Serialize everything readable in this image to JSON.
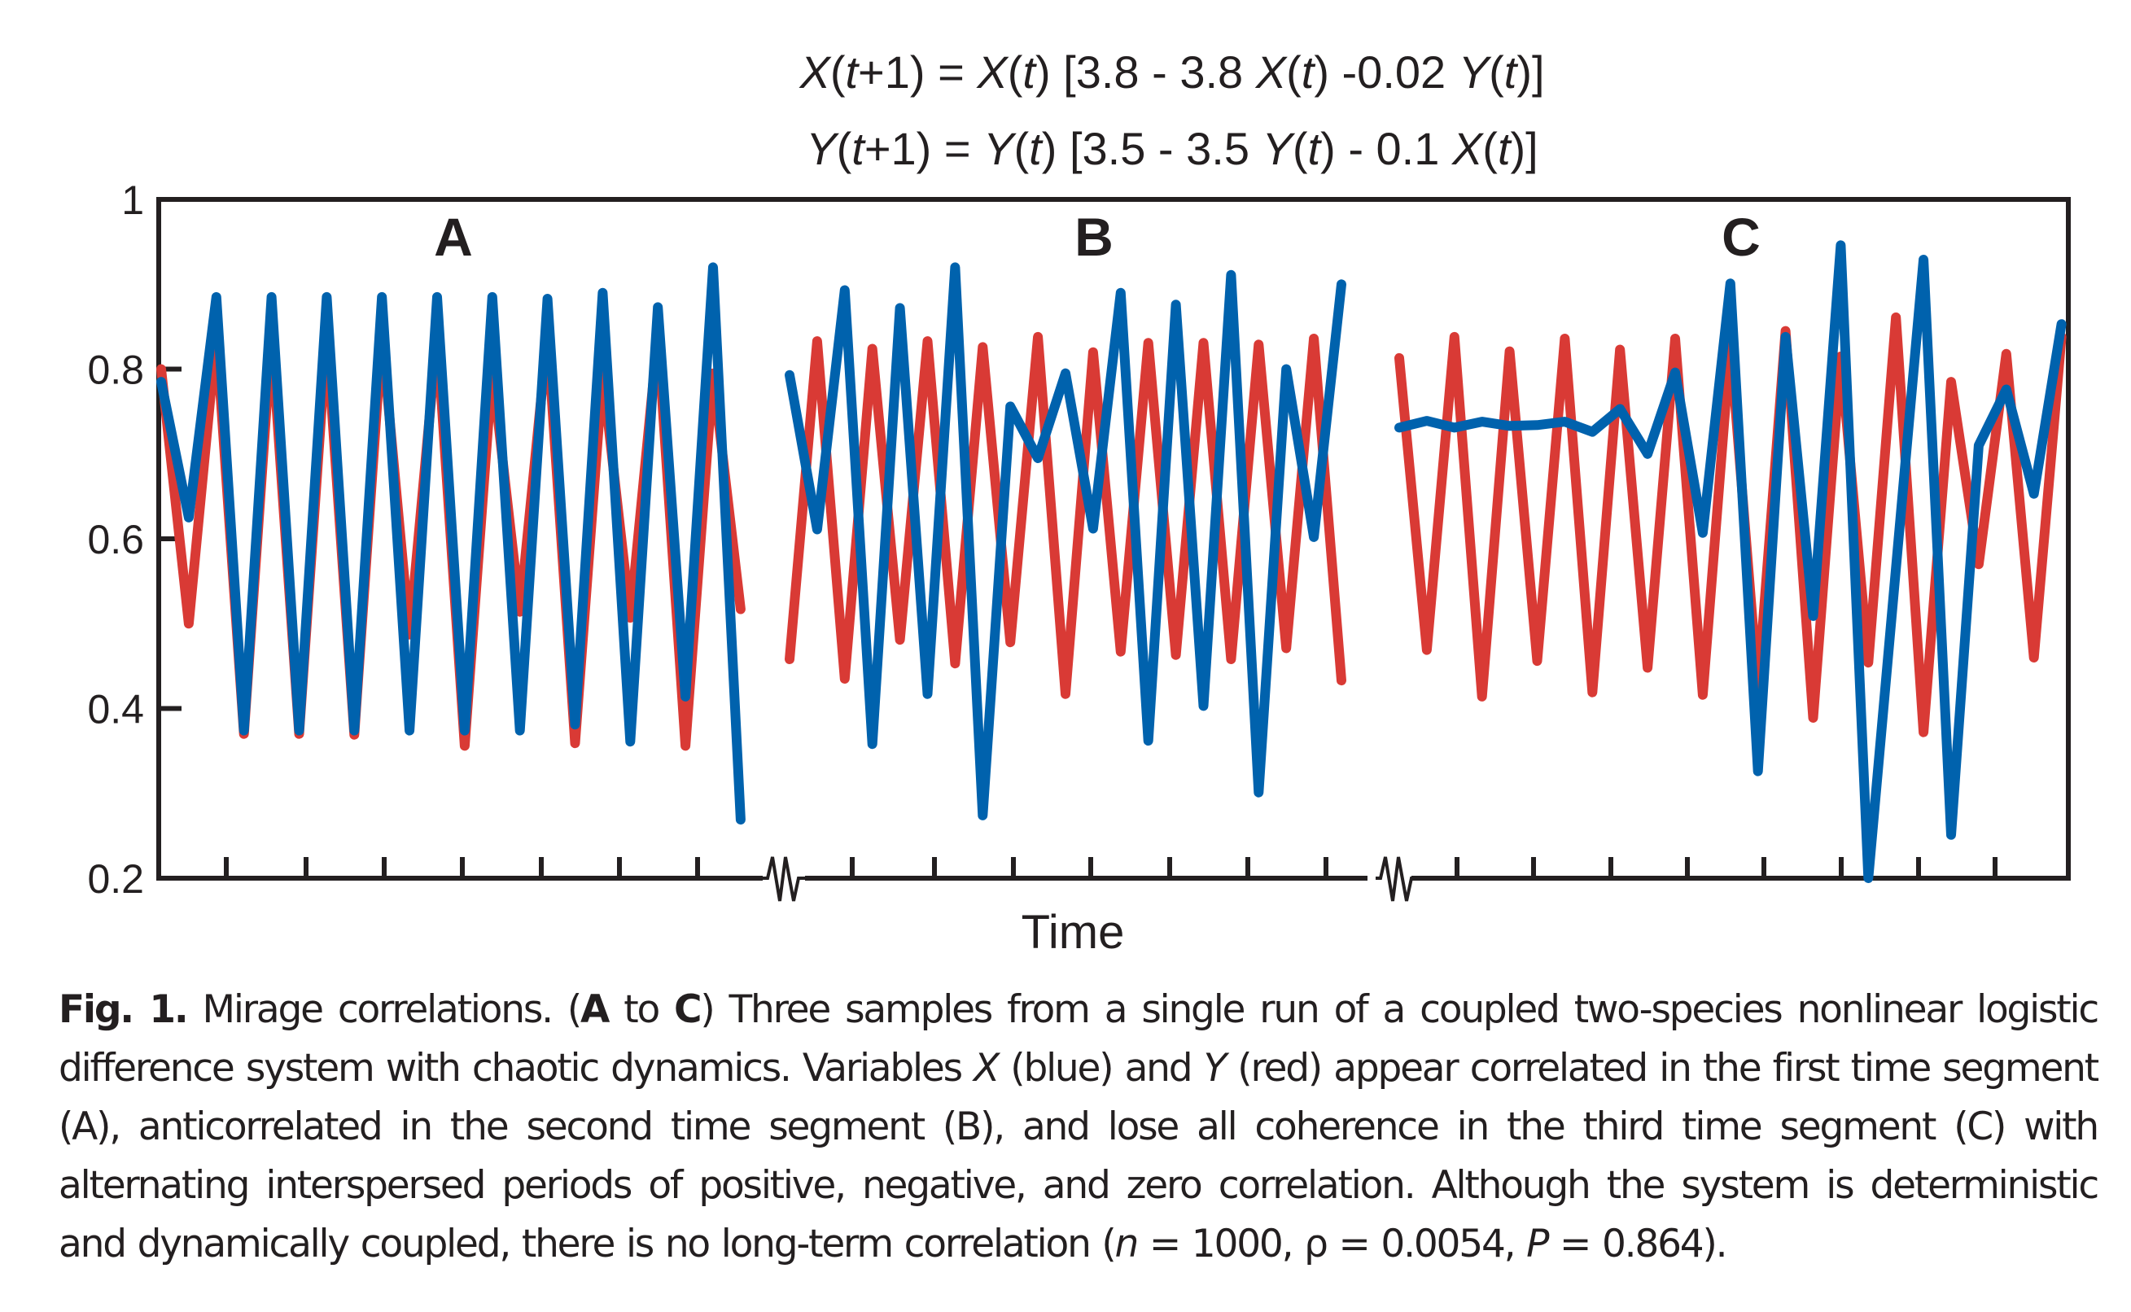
{
  "equations": {
    "x_eq": [
      {
        "t": "X",
        "i": true
      },
      {
        "t": "(",
        "i": false
      },
      {
        "t": "t",
        "i": true
      },
      {
        "t": "+1) = ",
        "i": false
      },
      {
        "t": "X",
        "i": true
      },
      {
        "t": "(",
        "i": false
      },
      {
        "t": "t",
        "i": true
      },
      {
        "t": ") [3.8 - 3.8 ",
        "i": false
      },
      {
        "t": "X",
        "i": true
      },
      {
        "t": "(",
        "i": false
      },
      {
        "t": "t",
        "i": true
      },
      {
        "t": ") -0.02 ",
        "i": false
      },
      {
        "t": "Y",
        "i": true
      },
      {
        "t": "(",
        "i": false
      },
      {
        "t": "t",
        "i": true
      },
      {
        "t": ")]",
        "i": false
      }
    ],
    "y_eq": [
      {
        "t": "Y",
        "i": true
      },
      {
        "t": "(",
        "i": false
      },
      {
        "t": "t",
        "i": true
      },
      {
        "t": "+1) = ",
        "i": false
      },
      {
        "t": "Y",
        "i": true
      },
      {
        "t": "(",
        "i": false
      },
      {
        "t": "t",
        "i": true
      },
      {
        "t": ") [3.5 - 3.5 ",
        "i": false
      },
      {
        "t": "Y",
        "i": true
      },
      {
        "t": "(",
        "i": false
      },
      {
        "t": "t",
        "i": true
      },
      {
        "t": ") - 0.1 ",
        "i": false
      },
      {
        "t": "X",
        "i": true
      },
      {
        "t": "(",
        "i": false
      },
      {
        "t": "t",
        "i": true
      },
      {
        "t": ")]",
        "i": false
      }
    ]
  },
  "colors": {
    "X_blue": "#0062ad",
    "Y_red": "#d93a35",
    "axis": "#231f20"
  },
  "chart_data": {
    "type": "line",
    "title": "X(t+1) = X(t) [3.8 - 3.8 X(t) -0.02 Y(t)]; Y(t+1) = Y(t) [3.5 - 3.5 Y(t) - 0.1 X(t)]",
    "xlabel": "Time",
    "ylabel": "",
    "ylim": [
      0.2,
      1.0
    ],
    "yticks": [
      0.2,
      0.4,
      0.6,
      0.8,
      1.0
    ],
    "ytick_labels": [
      "0.2",
      "0.4",
      "0.6",
      "0.8",
      "1"
    ],
    "grid": false,
    "legend": "none",
    "axis_breaks": 2,
    "xticks_per_segment": [
      8,
      7,
      8
    ],
    "segments": [
      {
        "label": "A",
        "series": [
          {
            "name": "X (blue)",
            "color": "#0062ad",
            "values": [
              0.785,
              0.625,
              0.885,
              0.374,
              0.885,
              0.374,
              0.885,
              0.374,
              0.885,
              0.374,
              0.885,
              0.374,
              0.885,
              0.374,
              0.883,
              0.381,
              0.89,
              0.361,
              0.873,
              0.414,
              0.92,
              0.269
            ]
          },
          {
            "name": "Y (red)",
            "color": "#d93a35",
            "values": [
              0.8,
              0.5,
              0.84,
              0.37,
              0.84,
              0.37,
              0.84,
              0.369,
              0.84,
              0.487,
              0.84,
              0.356,
              0.8,
              0.514,
              0.84,
              0.359,
              0.795,
              0.507,
              0.84,
              0.356,
              0.795,
              0.517
            ]
          }
        ]
      },
      {
        "label": "B",
        "series": [
          {
            "name": "X (blue)",
            "color": "#0062ad",
            "values": [
              0.793,
              0.611,
              0.893,
              0.358,
              0.872,
              0.417,
              0.92,
              0.274,
              0.756,
              0.695,
              0.795,
              0.612,
              0.89,
              0.362,
              0.876,
              0.403,
              0.911,
              0.301,
              0.8,
              0.602,
              0.9
            ]
          },
          {
            "name": "Y (red)",
            "color": "#d93a35",
            "values": [
              0.458,
              0.833,
              0.435,
              0.824,
              0.481,
              0.833,
              0.453,
              0.826,
              0.478,
              0.838,
              0.417,
              0.82,
              0.467,
              0.831,
              0.463,
              0.831,
              0.458,
              0.829,
              0.471,
              0.836,
              0.433
            ]
          }
        ]
      },
      {
        "label": "C",
        "series": [
          {
            "name": "X (blue)",
            "color": "#0062ad",
            "values": [
              0.731,
              0.739,
              0.731,
              0.738,
              0.733,
              0.734,
              0.738,
              0.726,
              0.753,
              0.7,
              0.796,
              0.607,
              0.901,
              0.326,
              0.838,
              0.509,
              0.946,
              0.2,
              0.565,
              0.929,
              0.251,
              0.71,
              0.776,
              0.653,
              0.853
            ]
          },
          {
            "name": "Y (red)",
            "color": "#d93a35",
            "values": [
              0.813,
              0.469,
              0.838,
              0.414,
              0.821,
              0.456,
              0.836,
              0.419,
              0.823,
              0.448,
              0.836,
              0.416,
              0.83,
              0.424,
              0.845,
              0.389,
              0.815,
              0.454,
              0.861,
              0.372,
              0.785,
              0.57,
              0.818,
              0.46,
              0.838
            ]
          }
        ]
      }
    ]
  },
  "caption": {
    "fig_label": "Fig. 1.",
    "title": " Mirage correlations. (",
    "range_a": "A",
    "range_to": " to ",
    "range_c": "C",
    "text1": ") Three samples from a single run of a coupled two-species nonlinear logistic difference system with chaotic dynamics. Variables ",
    "var_x": "X",
    "text2": " (blue) and ",
    "var_y": "Y",
    "text3": " (red) appear correlated in the first time segment (A), anticorrelated in the second time segment (B), and lose all coherence in the third time segment (C) with alternating interspersed periods of positive, negative, and zero correlation. Although the system is deterministic and dynamically coupled, there is no long-term correlation (",
    "n_sym": "n",
    "n_val": " = 1000, ρ = 0.0054, ",
    "p_sym": "P",
    "p_val": " = 0.864)."
  }
}
